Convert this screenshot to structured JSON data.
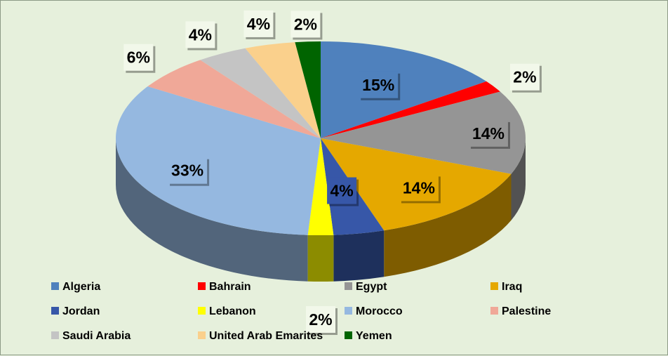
{
  "chart_data": {
    "type": "pie",
    "style": "3d-exploded-none",
    "title": "",
    "categories": [
      "Algeria",
      "Bahrain",
      "Egypt",
      "Iraq",
      "Jordan",
      "Lebanon",
      "Morocco",
      "Palestine",
      "Saudi Arabia",
      "United Arab Emarites",
      "Yemen"
    ],
    "values": [
      15,
      2,
      14,
      14,
      4,
      2,
      33,
      6,
      4,
      4,
      2
    ],
    "labels": [
      "15%",
      "2%",
      "14%",
      "14%",
      "4%",
      "2%",
      "33%",
      "6%",
      "4%",
      "4%",
      "2%"
    ],
    "colors": [
      "#4f81bd",
      "#ff0000",
      "#959595",
      "#e5a800",
      "#3757a8",
      "#ffff00",
      "#95b8e0",
      "#f0a898",
      "#c4c4c4",
      "#fad08c",
      "#006400"
    ],
    "legend_position": "bottom"
  }
}
